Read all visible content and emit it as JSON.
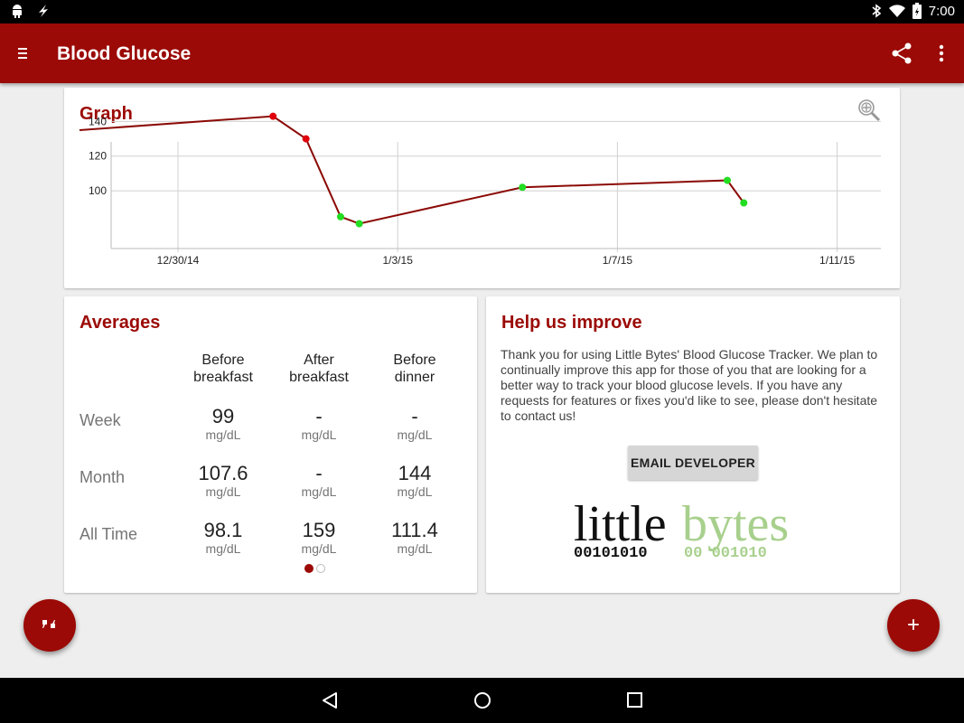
{
  "status_bar": {
    "time": "7:00",
    "left_icons": [
      "android-icon",
      "bolt-icon"
    ],
    "right_icons": [
      "bluetooth-icon",
      "wifi-icon",
      "battery-icon"
    ]
  },
  "app_bar": {
    "title": "Blood Glucose",
    "menu_icon": "menu-icon",
    "share_icon": "share-icon",
    "overflow_icon": "more-vert-icon",
    "color": "#9b0a06"
  },
  "graph": {
    "title": "Graph",
    "zoom_icon": "zoom-in-icon"
  },
  "chart_data": {
    "type": "line",
    "x_dates": [
      "2014-12-27",
      "2015-01-01",
      "2015-01-01",
      "2015-01-02",
      "2015-01-03",
      "2015-01-05",
      "2015-01-09",
      "2015-01-10"
    ],
    "y_values": [
      135,
      143,
      130,
      85,
      81,
      102,
      106,
      93
    ],
    "point_status": [
      "none",
      "high",
      "high",
      "normal",
      "normal",
      "normal",
      "normal",
      "normal"
    ],
    "status_colors": {
      "high": "#e0000a",
      "normal": "#22dd22"
    },
    "line_color": "#8b0a06",
    "y_ticks": [
      100,
      120,
      140
    ],
    "x_ticks": [
      "12/30/14",
      "1/3/15",
      "1/7/15",
      "1/11/15"
    ],
    "ylim": [
      75,
      150
    ],
    "grid": true
  },
  "averages": {
    "title": "Averages",
    "columns": [
      "Before\nbreakfast",
      "After\nbreakfast",
      "Before\ndinner"
    ],
    "rows": [
      {
        "label": "Week",
        "values": [
          "99",
          "-",
          "-"
        ]
      },
      {
        "label": "Month",
        "values": [
          "107.6",
          "-",
          "144"
        ]
      },
      {
        "label": "All Time",
        "values": [
          "98.1",
          "159",
          "111.4"
        ]
      }
    ],
    "unit": "mg/dL",
    "page_index": 0,
    "page_count": 2
  },
  "help": {
    "title": "Help us improve",
    "body": "Thank you for using Little Bytes' Blood Glucose Tracker. We plan to continually improve this app for those of you that are looking for a better way to track your blood glucose levels. If you have any requests for features or fixes you'd like to see, please don't hesitate to contact us!",
    "button_label": "EMAIL DEVELOPER",
    "logo_text_1": "little",
    "logo_text_2": "bytes",
    "logo_binary_1": "00101010",
    "logo_binary_2": "00 001010",
    "logo_color_dark": "#111111",
    "logo_color_green": "#a8d08d"
  },
  "fabs": {
    "left_icon": "quote-icon",
    "right_label": "+"
  },
  "nav_bar": {
    "icons": [
      "back-icon",
      "home-icon",
      "recents-icon"
    ]
  }
}
